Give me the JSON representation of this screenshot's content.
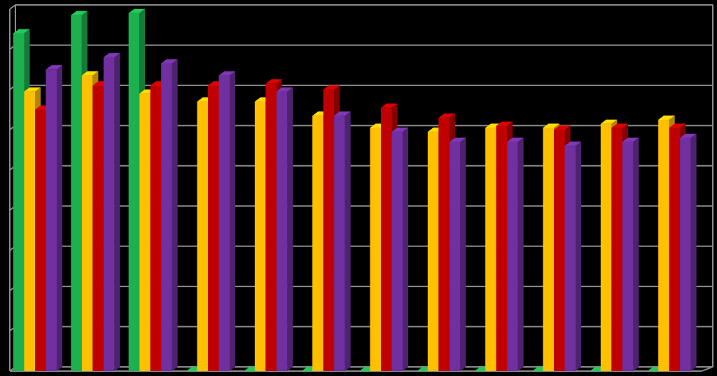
{
  "chart_data": {
    "type": "bar",
    "style": "3d-clustered",
    "title": "",
    "xlabel": "",
    "ylabel": "",
    "grid": true,
    "legend": "none",
    "ylim": [
      0,
      9
    ],
    "categories": [
      "",
      "",
      "",
      "",
      "",
      "",
      "",
      "",
      "",
      "",
      "",
      ""
    ],
    "series": [
      {
        "color": "#1db04f",
        "values": [
          8.4,
          8.85,
          8.9,
          0,
          0,
          0,
          0,
          0,
          0,
          0,
          0,
          0
        ]
      },
      {
        "color": "#ffc000",
        "values": [
          6.95,
          7.35,
          6.9,
          6.7,
          6.7,
          6.35,
          6.05,
          5.95,
          6.05,
          6.05,
          6.15,
          6.25
        ]
      },
      {
        "color": "#c00000",
        "values": [
          6.5,
          7.1,
          7.1,
          7.1,
          7.15,
          7.0,
          6.55,
          6.3,
          6.1,
          6.0,
          6.05,
          6.05
        ]
      },
      {
        "color": "#7030a0",
        "values": [
          7.5,
          7.8,
          7.65,
          7.35,
          6.95,
          6.35,
          5.95,
          5.7,
          5.7,
          5.6,
          5.7,
          5.8
        ]
      }
    ]
  }
}
